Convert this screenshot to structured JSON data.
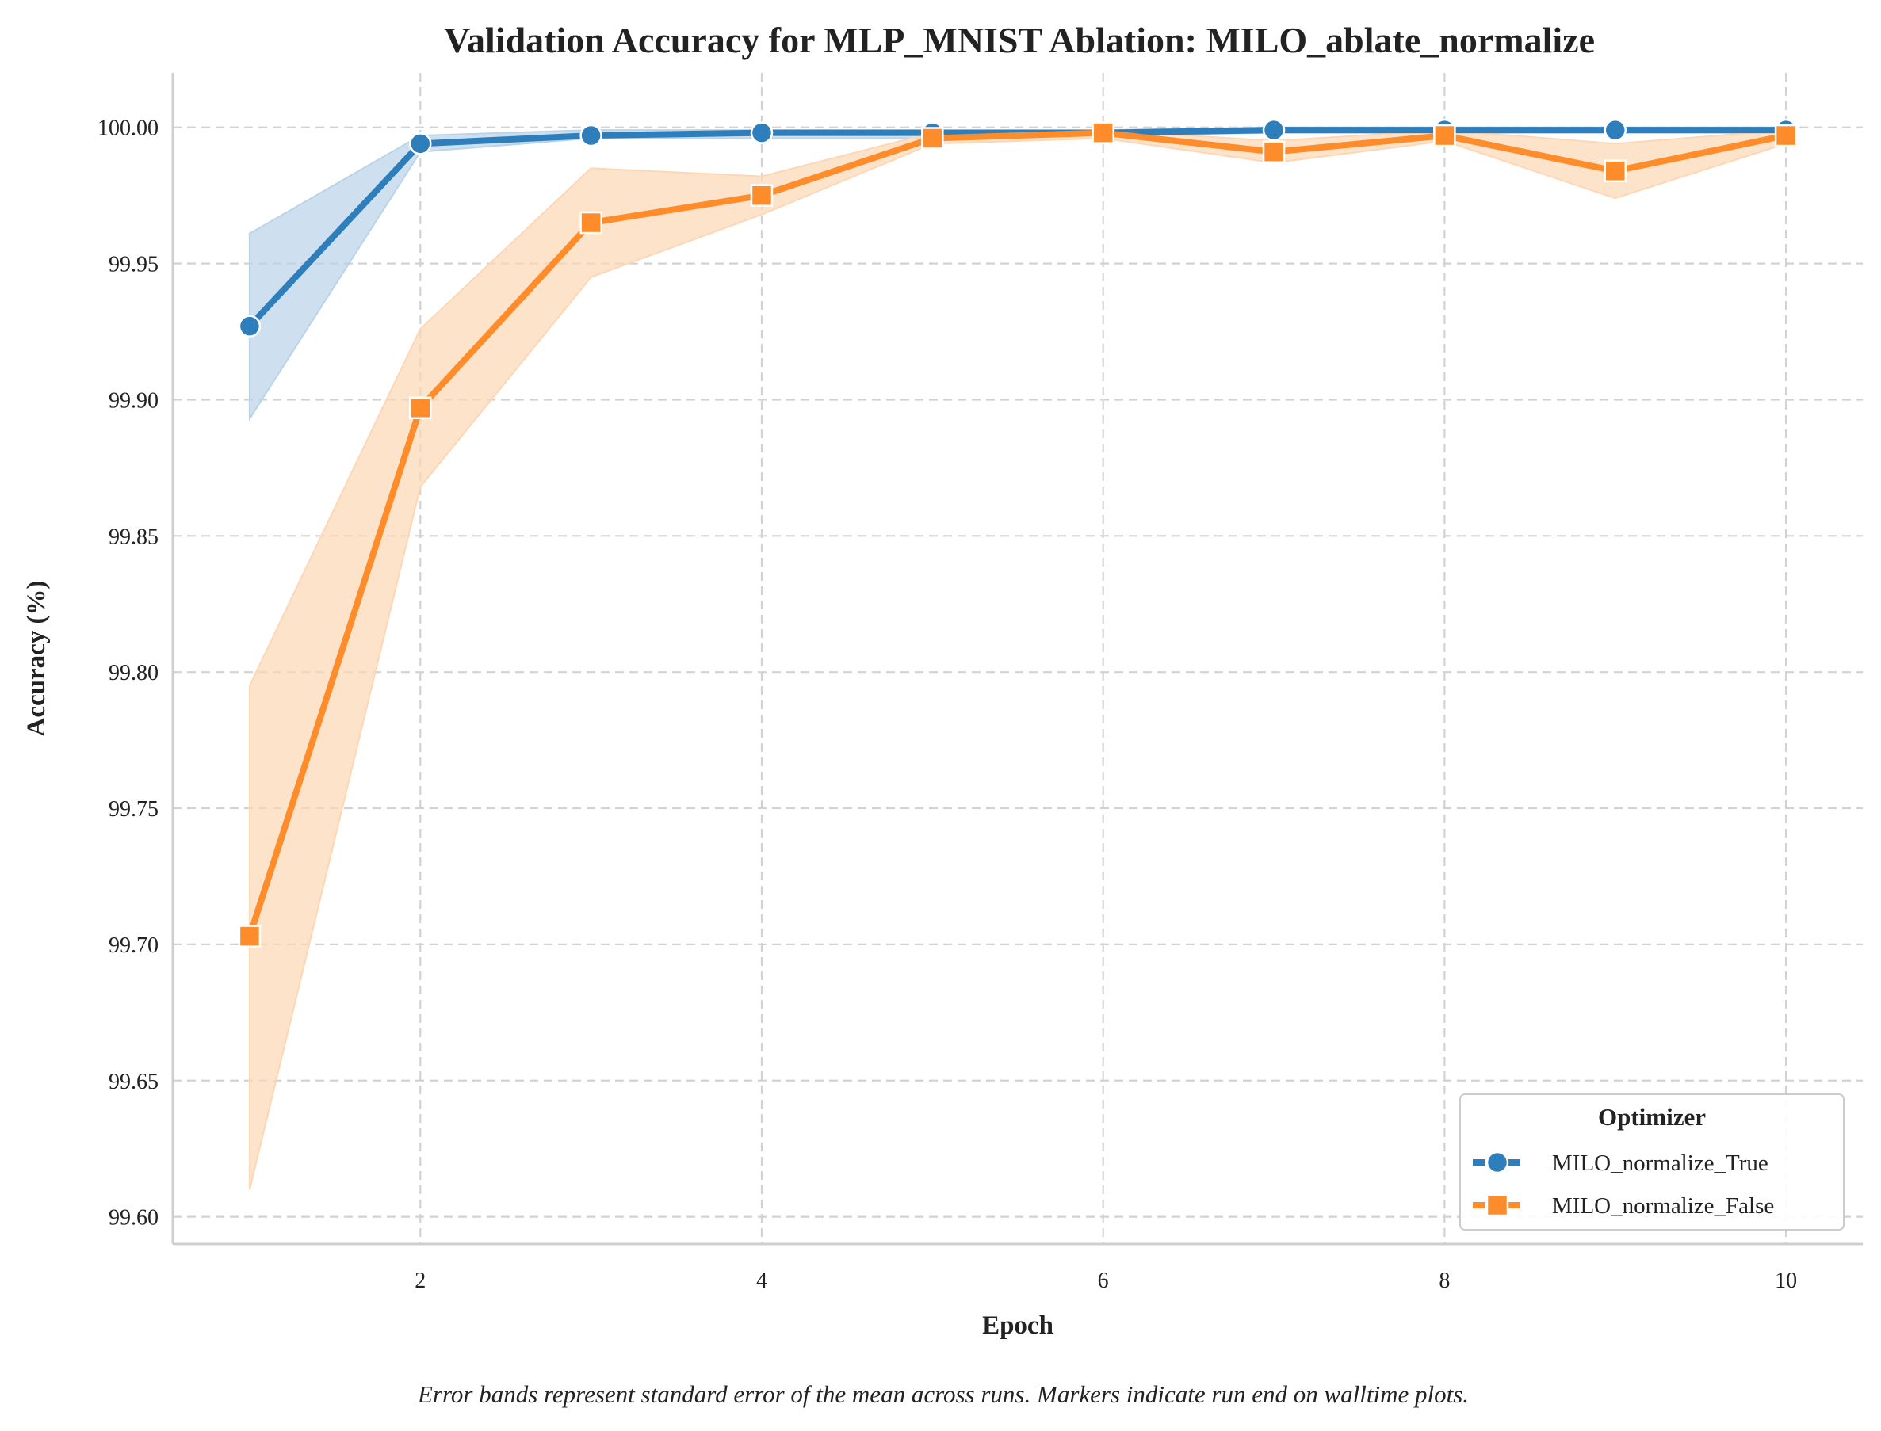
{
  "chart_data": {
    "type": "line",
    "title": "Validation Accuracy for MLP_MNIST Ablation: MILO_ablate_normalize",
    "xlabel": "Epoch",
    "ylabel": "Accuracy (%)",
    "x": [
      1,
      2,
      3,
      4,
      5,
      6,
      7,
      8,
      9,
      10
    ],
    "xlim": [
      0.55,
      10.45
    ],
    "ylim": [
      99.59,
      100.02
    ],
    "xticks": [
      2,
      4,
      6,
      8,
      10
    ],
    "yticks": [
      99.6,
      99.65,
      99.7,
      99.75,
      99.8,
      99.85,
      99.9,
      99.95,
      100.0
    ],
    "ytick_labels": [
      "99.60",
      "99.65",
      "99.70",
      "99.75",
      "99.80",
      "99.85",
      "99.90",
      "99.95",
      "100.00"
    ],
    "grid": true,
    "legend": {
      "title": "Optimizer",
      "position": "bottom-right"
    },
    "series": [
      {
        "name": "MILO_normalize_True",
        "color": "#2f7ebc",
        "marker": "circle",
        "values": [
          99.927,
          99.994,
          99.997,
          99.998,
          99.998,
          99.998,
          99.999,
          99.999,
          99.999,
          99.999
        ],
        "lower": [
          99.893,
          99.991,
          99.996,
          99.996,
          99.996,
          99.997,
          99.998,
          99.998,
          99.998,
          99.998
        ],
        "upper": [
          99.961,
          99.997,
          99.999,
          99.999,
          99.999,
          99.999,
          100.0,
          100.0,
          100.0,
          100.0
        ]
      },
      {
        "name": "MILO_normalize_False",
        "color": "#ff8c2a",
        "marker": "square",
        "values": [
          99.703,
          99.897,
          99.965,
          99.975,
          99.996,
          99.998,
          99.991,
          99.997,
          99.984,
          99.997
        ],
        "lower": [
          99.61,
          99.868,
          99.945,
          99.968,
          99.994,
          99.996,
          99.987,
          99.995,
          99.974,
          99.994
        ],
        "upper": [
          99.795,
          99.926,
          99.985,
          99.982,
          99.998,
          99.999,
          99.995,
          99.999,
          99.994,
          99.999
        ]
      }
    ]
  },
  "caption": "Error bands represent standard error of the mean across runs. Markers indicate run end on walltime plots."
}
